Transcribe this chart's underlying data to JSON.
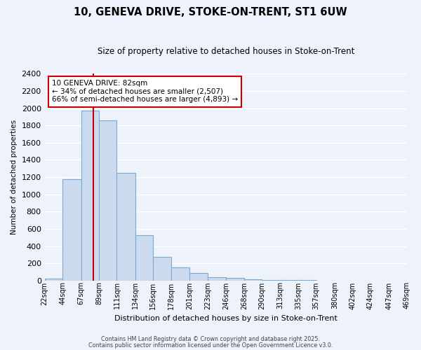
{
  "title": "10, GENEVA DRIVE, STOKE-ON-TRENT, ST1 6UW",
  "subtitle": "Size of property relative to detached houses in Stoke-on-Trent",
  "xlabel": "Distribution of detached houses by size in Stoke-on-Trent",
  "ylabel": "Number of detached properties",
  "bar_values": [
    25,
    1175,
    1975,
    1860,
    1250,
    525,
    275,
    150,
    85,
    40,
    35,
    15,
    10,
    10,
    5,
    2,
    2,
    2,
    2,
    2
  ],
  "bin_edges": [
    22,
    44,
    67,
    89,
    111,
    134,
    156,
    178,
    201,
    223,
    246,
    268,
    290,
    313,
    335,
    357,
    380,
    402,
    424,
    447,
    469
  ],
  "tick_labels": [
    "22sqm",
    "44sqm",
    "67sqm",
    "89sqm",
    "111sqm",
    "134sqm",
    "156sqm",
    "178sqm",
    "201sqm",
    "223sqm",
    "246sqm",
    "268sqm",
    "290sqm",
    "313sqm",
    "335sqm",
    "357sqm",
    "380sqm",
    "402sqm",
    "424sqm",
    "447sqm",
    "469sqm"
  ],
  "bar_color": "#ccdaf0",
  "bar_edge_color": "#7aaad0",
  "red_line_x": 82,
  "ylim": [
    0,
    2400
  ],
  "yticks": [
    0,
    200,
    400,
    600,
    800,
    1000,
    1200,
    1400,
    1600,
    1800,
    2000,
    2200,
    2400
  ],
  "annotation_title": "10 GENEVA DRIVE: 82sqm",
  "annotation_line1": "← 34% of detached houses are smaller (2,507)",
  "annotation_line2": "66% of semi-detached houses are larger (4,893) →",
  "annotation_box_color": "#ffffff",
  "annotation_box_edge": "#cc0000",
  "footer_line1": "Contains HM Land Registry data © Crown copyright and database right 2025.",
  "footer_line2": "Contains public sector information licensed under the Open Government Licence v3.0.",
  "bg_color": "#eef2fb",
  "grid_color": "#ffffff",
  "title_fontsize": 10.5,
  "subtitle_fontsize": 8.5
}
